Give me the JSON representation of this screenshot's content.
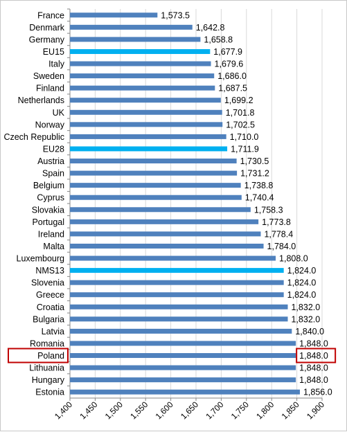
{
  "chart_data": {
    "type": "bar",
    "orientation": "horizontal",
    "categories": [
      "France",
      "Denmark",
      "Germany",
      "EU15",
      "Italy",
      "Sweden",
      "Finland",
      "Netherlands",
      "UK",
      "Norway",
      "Czech Republic",
      "EU28",
      "Austria",
      "Spain",
      "Belgium",
      "Cyprus",
      "Slovakia",
      "Portugal",
      "Ireland",
      "Malta",
      "Luxembourg",
      "NMS13",
      "Slovenia",
      "Greece",
      "Croatia",
      "Bulgaria",
      "Latvia",
      "Romania",
      "Poland",
      "Lithuania",
      "Hungary",
      "Estonia"
    ],
    "values": [
      1573.5,
      1642.8,
      1658.8,
      1677.9,
      1679.6,
      1686.0,
      1687.5,
      1699.2,
      1701.8,
      1702.5,
      1710.0,
      1711.9,
      1730.5,
      1731.2,
      1738.8,
      1740.4,
      1758.3,
      1773.8,
      1778.4,
      1784.0,
      1808.0,
      1824.0,
      1824.0,
      1824.0,
      1832.0,
      1832.0,
      1840.0,
      1848.0,
      1848.0,
      1848.0,
      1848.0,
      1856.0
    ],
    "value_labels": [
      "1,573.5",
      "1,642.8",
      "1,658.8",
      "1,677.9",
      "1,679.6",
      "1,686.0",
      "1,687.5",
      "1,699.2",
      "1,701.8",
      "1,702.5",
      "1,710.0",
      "1,711.9",
      "1,730.5",
      "1,731.2",
      "1,738.8",
      "1,740.4",
      "1,758.3",
      "1,773.8",
      "1,778.4",
      "1,784.0",
      "1,808.0",
      "1,824.0",
      "1,824.0",
      "1,824.0",
      "1,832.0",
      "1,832.0",
      "1,840.0",
      "1,848.0",
      "1,848.0",
      "1,848.0",
      "1,848.0",
      "1,856.0"
    ],
    "highlighted_aggregates": [
      "EU15",
      "EU28",
      "NMS13"
    ],
    "boxed_category": "Poland",
    "xlim": [
      1400,
      1900
    ],
    "xticks": [
      1400,
      1450,
      1500,
      1550,
      1600,
      1650,
      1700,
      1750,
      1800,
      1850,
      1900
    ],
    "xtick_labels": [
      "1,400",
      "1,450",
      "1,500",
      "1,550",
      "1,600",
      "1,650",
      "1,700",
      "1,750",
      "1,800",
      "1,850",
      "1,900"
    ],
    "grid": "vertical",
    "title": "",
    "xlabel": "",
    "ylabel": "",
    "colors": {
      "bar": "#4f81bd",
      "aggregate_bar": "#00b0f0",
      "gridline": "#d9d9d9",
      "highlight_box": "#c00000"
    }
  }
}
